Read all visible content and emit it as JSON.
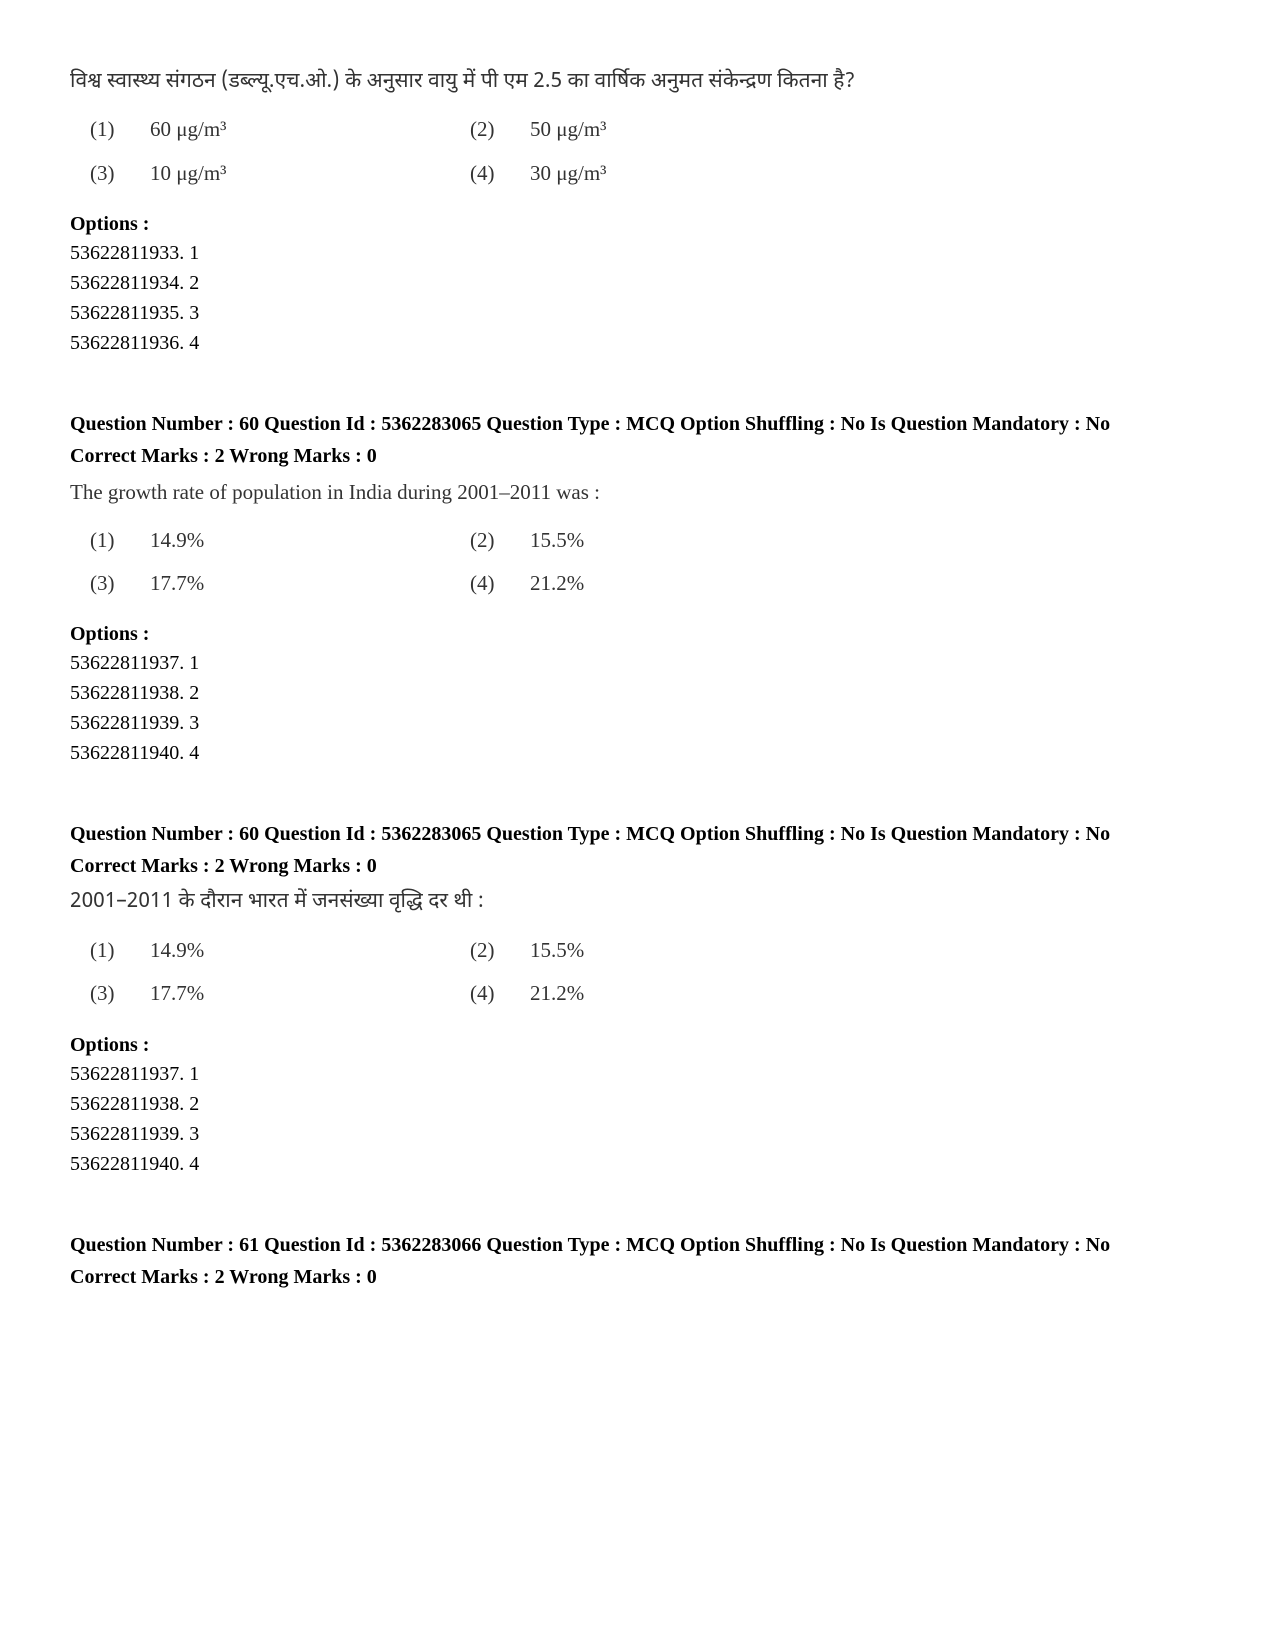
{
  "q59_hindi": {
    "text": "विश्व स्वास्थ्य संगठन (डब्ल्यू.एच.ओ.) के अनुसार वायु में पी एम 2.5 का वार्षिक अनुमत संकेन्द्रण कितना है?",
    "a1n": "(1)",
    "a1v": "60 μg/m³",
    "a2n": "(2)",
    "a2v": "50 μg/m³",
    "a3n": "(3)",
    "a3v": "10 μg/m³",
    "a4n": "(4)",
    "a4v": "30 μg/m³",
    "options_label": "Options :",
    "o1": "53622811933. 1",
    "o2": "53622811934. 2",
    "o3": "53622811935. 3",
    "o4": "53622811936. 4"
  },
  "q60_en": {
    "header_line1": "Question Number : 60 Question Id : 5362283065 Question Type : MCQ Option Shuffling : No Is Question Mandatory : No",
    "header_line2": "Correct Marks : 2 Wrong Marks : 0",
    "text": "The growth rate of population in India during 2001–2011 was :",
    "a1n": "(1)",
    "a1v": "14.9%",
    "a2n": "(2)",
    "a2v": "15.5%",
    "a3n": "(3)",
    "a3v": "17.7%",
    "a4n": "(4)",
    "a4v": "21.2%",
    "options_label": "Options :",
    "o1": "53622811937. 1",
    "o2": "53622811938. 2",
    "o3": "53622811939. 3",
    "o4": "53622811940. 4"
  },
  "q60_hi": {
    "header_line1": "Question Number : 60 Question Id : 5362283065 Question Type : MCQ Option Shuffling : No Is Question Mandatory : No",
    "header_line2": "Correct Marks : 2 Wrong Marks : 0",
    "text": "2001–2011 के दौरान भारत में जनसंख्या वृद्धि दर थी :",
    "a1n": "(1)",
    "a1v": "14.9%",
    "a2n": "(2)",
    "a2v": "15.5%",
    "a3n": "(3)",
    "a3v": "17.7%",
    "a4n": "(4)",
    "a4v": "21.2%",
    "options_label": "Options :",
    "o1": "53622811937. 1",
    "o2": "53622811938. 2",
    "o3": "53622811939. 3",
    "o4": "53622811940. 4"
  },
  "q61": {
    "header_line1": "Question Number : 61 Question Id : 5362283066 Question Type : MCQ Option Shuffling : No Is Question Mandatory : No",
    "header_line2": "Correct Marks : 2 Wrong Marks : 0"
  }
}
